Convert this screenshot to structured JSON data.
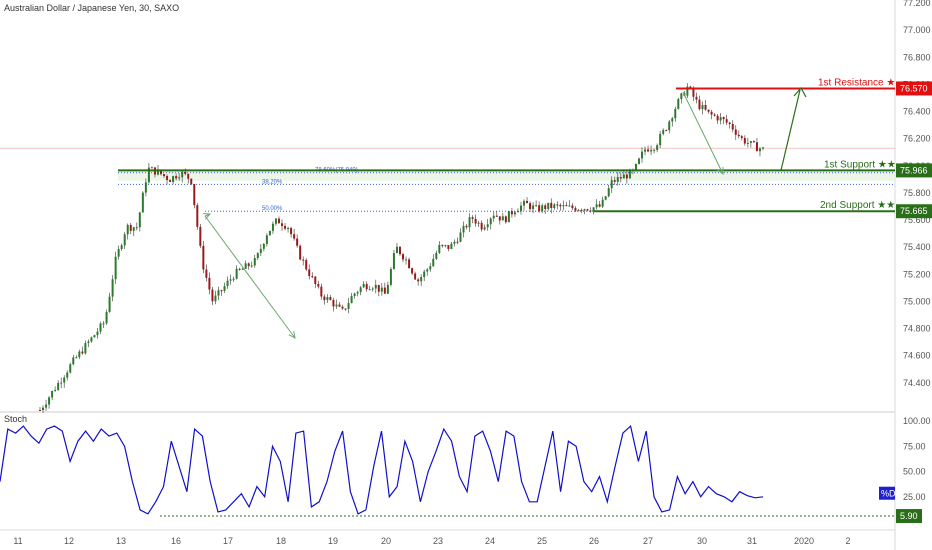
{
  "chart_data": [
    {
      "type": "candlestick",
      "title": "Australian Dollar / Japanese Yen, 30, SAXO",
      "ylim": [
        74.2,
        77.2
      ],
      "y_ticks": [
        "77.200",
        "77.000",
        "76.800",
        "76.600",
        "76.400",
        "76.200",
        "76.000",
        "75.800",
        "75.600",
        "75.400",
        "75.200",
        "75.000",
        "74.800",
        "74.600",
        "74.400"
      ],
      "x_ticks": [
        "11",
        "12",
        "13",
        "16",
        "17",
        "18",
        "19",
        "20",
        "23",
        "24",
        "25",
        "26",
        "27",
        "30",
        "31",
        "2020",
        "2"
      ],
      "price_path": [
        [
          0,
          74.2
        ],
        [
          3,
          74.55
        ],
        [
          4,
          74.65
        ],
        [
          6,
          74.85
        ],
        [
          7,
          75.3
        ],
        [
          8,
          75.55
        ],
        [
          9,
          75.55
        ],
        [
          10,
          75.98
        ],
        [
          11,
          75.95
        ],
        [
          12,
          75.9
        ],
        [
          13,
          75.95
        ],
        [
          14,
          75.9
        ],
        [
          15,
          75.3
        ],
        [
          16,
          75.0
        ],
        [
          17,
          75.1
        ],
        [
          18,
          75.2
        ],
        [
          19,
          75.25
        ],
        [
          20,
          75.3
        ],
        [
          21,
          75.5
        ],
        [
          22,
          75.6
        ],
        [
          23,
          75.55
        ],
        [
          24,
          75.35
        ],
        [
          25,
          75.2
        ],
        [
          26,
          75.05
        ],
        [
          27,
          75.0
        ],
        [
          28,
          74.92
        ],
        [
          29,
          75.05
        ],
        [
          30,
          75.12
        ],
        [
          31,
          75.12
        ],
        [
          32,
          75.05
        ],
        [
          33,
          75.4
        ],
        [
          34,
          75.3
        ],
        [
          35,
          75.15
        ],
        [
          36,
          75.25
        ],
        [
          37,
          75.4
        ],
        [
          38,
          75.4
        ],
        [
          39,
          75.5
        ],
        [
          40,
          75.62
        ],
        [
          41,
          75.55
        ],
        [
          42,
          75.65
        ],
        [
          43,
          75.6
        ],
        [
          44,
          75.68
        ],
        [
          45,
          75.72
        ],
        [
          46,
          75.68
        ],
        [
          47,
          75.7
        ],
        [
          48,
          75.7
        ],
        [
          49,
          75.69
        ],
        [
          50,
          75.69
        ],
        [
          51,
          75.69
        ],
        [
          52,
          75.7
        ],
        [
          53,
          75.88
        ],
        [
          54,
          75.92
        ],
        [
          55,
          75.95
        ],
        [
          56,
          76.12
        ],
        [
          57,
          76.15
        ],
        [
          58,
          76.28
        ],
        [
          59,
          76.45
        ],
        [
          60,
          76.58
        ],
        [
          61,
          76.45
        ],
        [
          62,
          76.38
        ],
        [
          63,
          76.35
        ],
        [
          64,
          76.3
        ],
        [
          65,
          76.2
        ],
        [
          66,
          76.15
        ],
        [
          67,
          76.12
        ]
      ],
      "levels": [
        {
          "name": "1st Resistance ★",
          "value": 76.57,
          "label": "76.570",
          "color": "#e01010"
        },
        {
          "name": "1st Support ★★",
          "value": 75.966,
          "label": "75.966",
          "color": "#2a6e1a"
        },
        {
          "name": "2nd Support ★★",
          "value": 75.665,
          "label": "75.665",
          "color": "#2a6e1a"
        }
      ],
      "fibonacci": [
        {
          "label": "78.60%(75.949)",
          "value": 75.949
        },
        {
          "label": "38.20%",
          "value": 75.9
        },
        {
          "label": "50.00%",
          "value": 75.665
        }
      ],
      "reference_line": 76.13
    },
    {
      "type": "line",
      "title": "Stoch",
      "ylim": [
        0,
        100
      ],
      "y_ticks": [
        "100.00",
        "75.00",
        "50.00",
        "25.00"
      ],
      "series": [
        {
          "name": "%D",
          "values": [
            40,
            92,
            88,
            95,
            85,
            78,
            92,
            95,
            90,
            60,
            80,
            90,
            80,
            92,
            85,
            88,
            75,
            40,
            12,
            8,
            20,
            35,
            80,
            55,
            30,
            92,
            85,
            40,
            10,
            12,
            20,
            28,
            15,
            35,
            25,
            75,
            60,
            20,
            88,
            90,
            15,
            20,
            40,
            70,
            90,
            30,
            8,
            12,
            55,
            90,
            25,
            35,
            80,
            60,
            20,
            50,
            70,
            92,
            80,
            45,
            30,
            85,
            90,
            70,
            40,
            90,
            85,
            40,
            20,
            20,
            55,
            90,
            30,
            80,
            75,
            40,
            30,
            45,
            20,
            55,
            88,
            95,
            60,
            90,
            25,
            10,
            12,
            45,
            28,
            40,
            25,
            35,
            28,
            25,
            20,
            30,
            26,
            24,
            25
          ]
        }
      ],
      "current_label": "%D",
      "min_line": 5.9,
      "min_label": "5.90"
    }
  ]
}
